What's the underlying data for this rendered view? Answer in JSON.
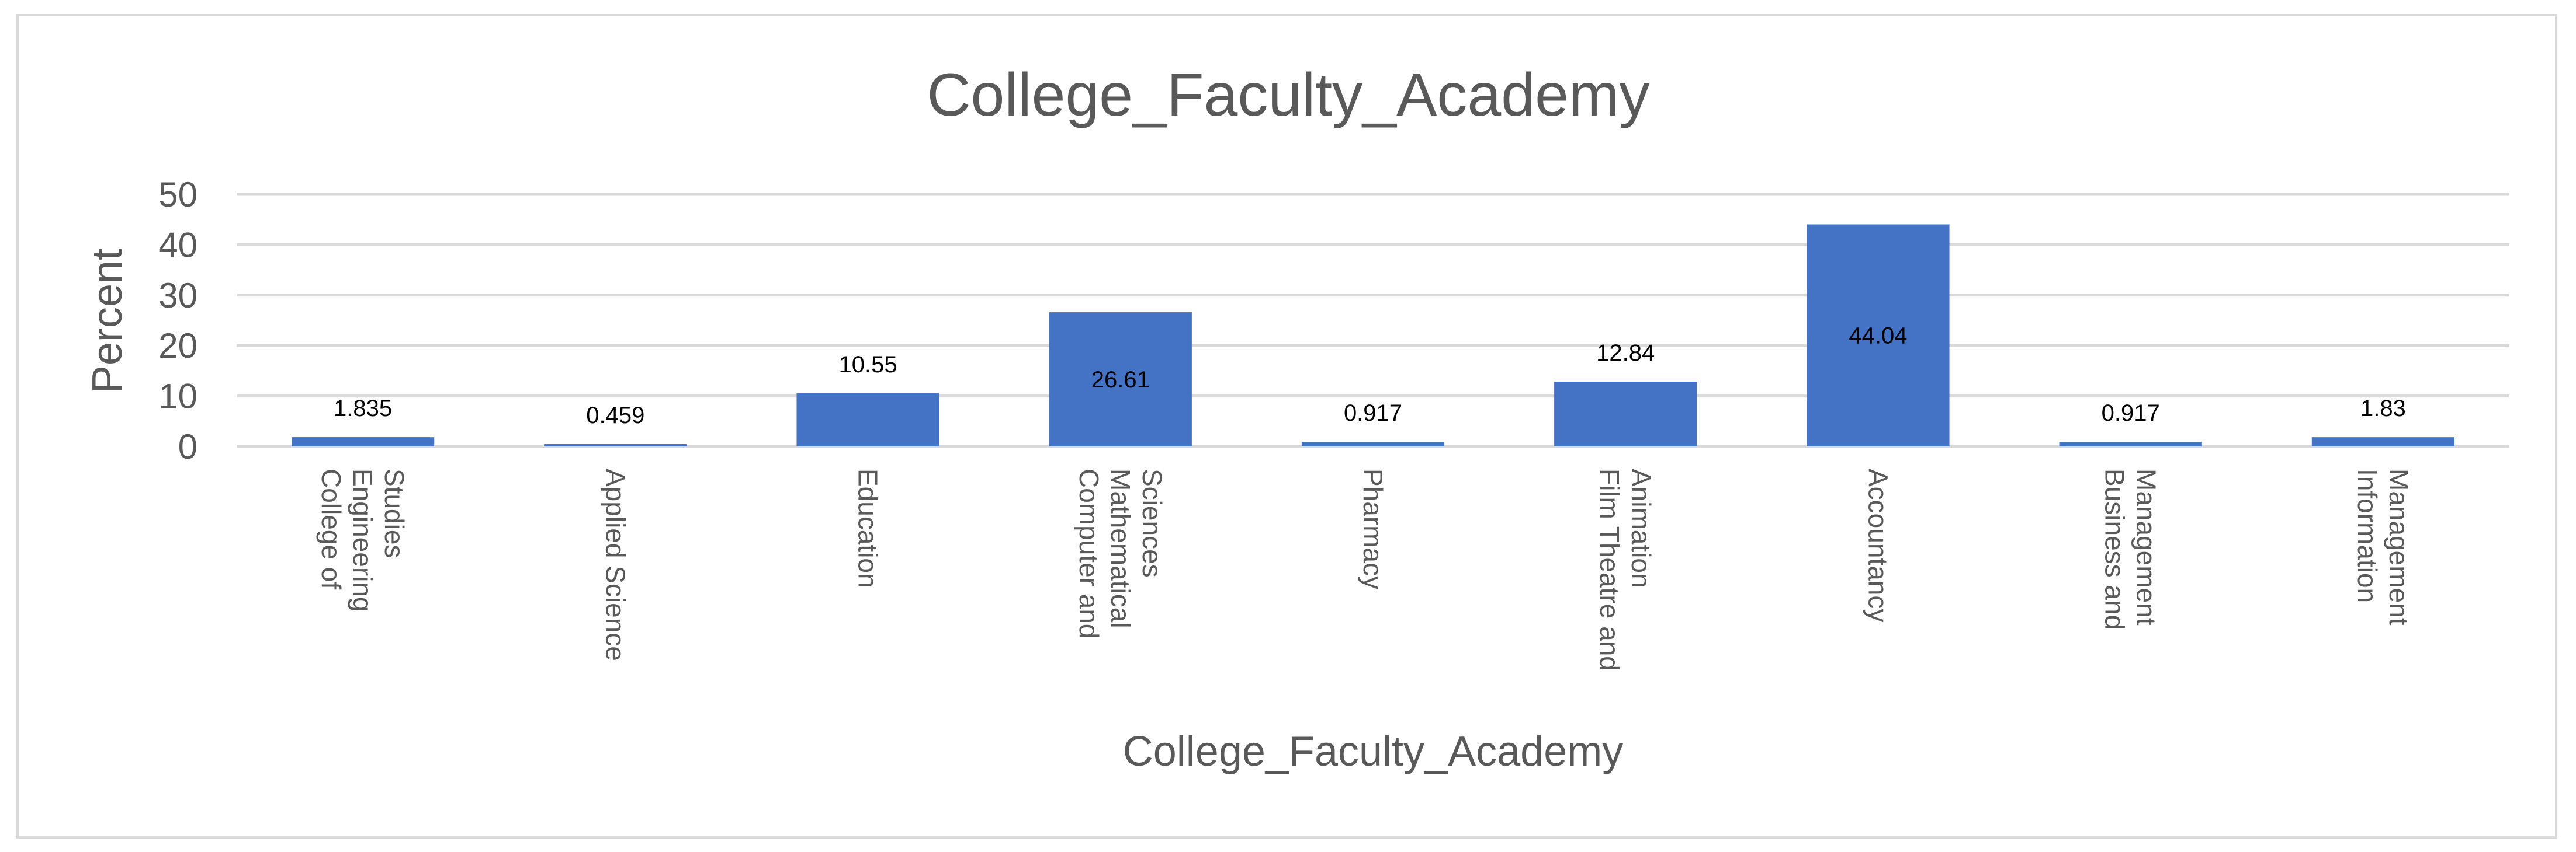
{
  "chart_data": {
    "type": "bar",
    "title": "College_Faculty_Academy",
    "xlabel": "College_Faculty_Academy",
    "ylabel": "Percent",
    "ylim": [
      0,
      50
    ],
    "yticks": [
      0,
      10,
      20,
      30,
      40,
      50
    ],
    "grid": true,
    "legend": "none",
    "bar_color": "#4472c4",
    "categories": [
      [
        "College of",
        "Engineering",
        "Studies"
      ],
      [
        "Applied Science"
      ],
      [
        "Education"
      ],
      [
        "Computer and",
        "Mathematical",
        "Sciences"
      ],
      [
        "Pharmacy"
      ],
      [
        "Film Theatre and",
        "Animation"
      ],
      [
        "Accountancy"
      ],
      [
        "Business and",
        "Management"
      ],
      [
        "Information",
        "Management"
      ]
    ],
    "values": [
      1.835,
      0.459,
      10.55,
      26.61,
      0.917,
      12.84,
      44.04,
      0.917,
      1.83
    ],
    "data_labels": [
      "1.835",
      "0.459",
      "10.55",
      "26.61",
      "0.917",
      "12.84",
      "44.04",
      "0.917",
      "1.83"
    ]
  }
}
